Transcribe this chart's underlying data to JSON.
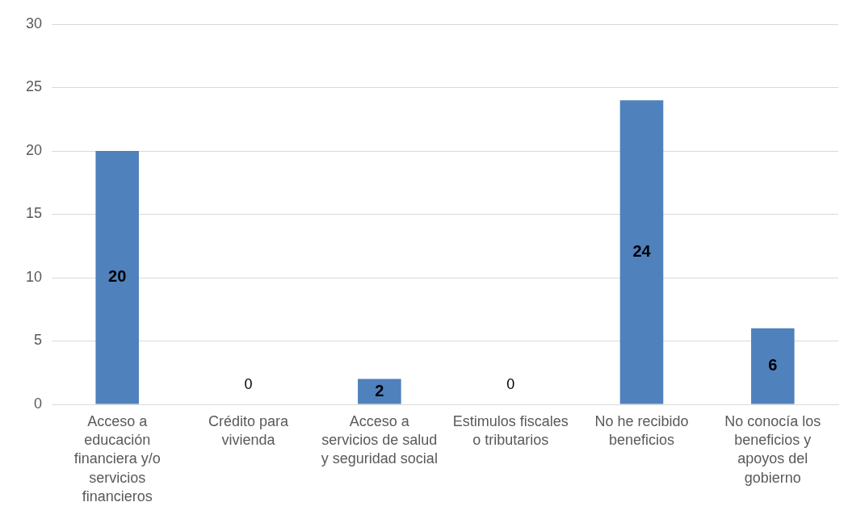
{
  "chart_data": {
    "type": "bar",
    "categories": [
      "Acceso a educación financiera y/o servicios financieros",
      "Crédito para vivienda",
      "Acceso a servicios de salud y seguridad social",
      "Estimulos fiscales o tributarios",
      "No he recibido beneficios",
      "No conocía los beneficios y apoyos del gobierno"
    ],
    "values": [
      20,
      0,
      2,
      0,
      24,
      6
    ],
    "color": "#4f81bd",
    "ylim": [
      0,
      30
    ],
    "yticks": [
      0,
      5,
      10,
      15,
      20,
      25,
      30
    ],
    "grid": "y",
    "legend": false,
    "data_labels": true
  }
}
